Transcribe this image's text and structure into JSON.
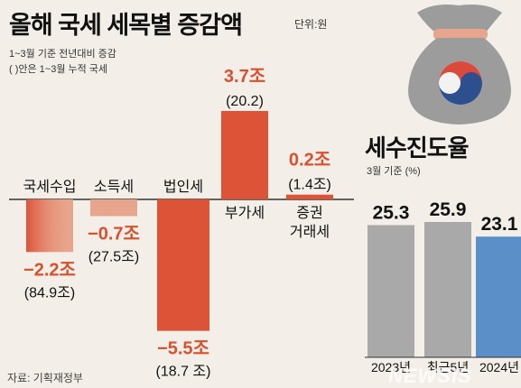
{
  "title": "올해 국세 세목별 증감액",
  "unit": "단위:원",
  "notes": [
    "1~3월 기준 전년대비 증감",
    "( )안은 1~3월 누적 국세"
  ],
  "source": "자료: 기획재정부",
  "watermark": "NEWSIS",
  "colors": {
    "bar_dark": "#dc5338",
    "bar_light": "#e8a58d",
    "negative_text": "#d9502f",
    "positive_text": "#d9502f",
    "gray_bar": "#a9a9a9",
    "blue_bar": "#5a8fc7",
    "bag": "#9c9c9c"
  },
  "right_title": "세수진도율",
  "right_subtitle": "3월 기준 (%)",
  "chart_data": [
    {
      "type": "bar",
      "title": "올해 국세 세목별 증감액",
      "categories": [
        "국세수입",
        "소득세",
        "법인세",
        "부가세",
        "증권\n거래세"
      ],
      "series": [
        {
          "values": [
            -2.2,
            -0.7,
            -5.5,
            3.7,
            0.2
          ],
          "value_labels": [
            "−2.2조",
            "−0.7조",
            "−5.5조",
            "3.7조",
            "0.2조"
          ],
          "cumulative_labels": [
            "(84.9조)",
            "(27.5조)",
            "(18.7 조)",
            "(20.2)",
            "(1.4조)"
          ]
        }
      ],
      "ylim": [
        -5.5,
        3.7
      ],
      "grid": false,
      "legend": "none"
    },
    {
      "type": "bar",
      "title": "세수진도율",
      "categories": [
        "2023년",
        "최근5년",
        "2024년"
      ],
      "values": [
        25.3,
        25.9,
        23.1
      ],
      "value_labels": [
        "25.3",
        "25.9",
        "23.1"
      ],
      "ylabel": "3월 기준 (%)",
      "grid": false,
      "legend": "none"
    }
  ]
}
